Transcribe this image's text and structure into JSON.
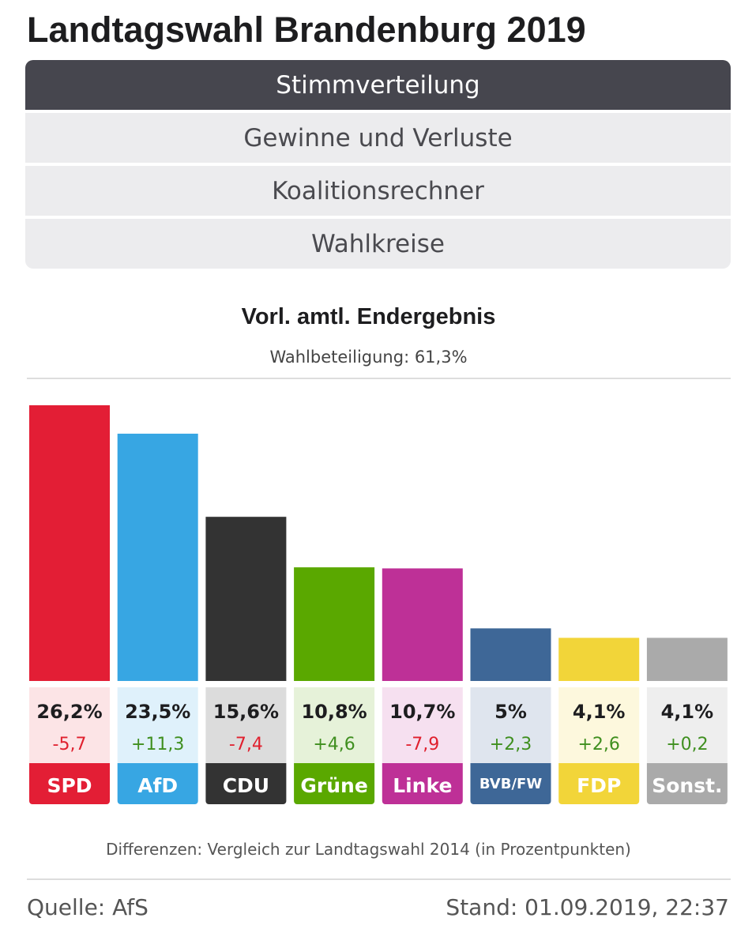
{
  "header": {
    "title": "Landtagswahl Brandenburg 2019"
  },
  "tabs": [
    {
      "label": "Stimmverteilung",
      "active": true
    },
    {
      "label": "Gewinne und Verluste",
      "active": false
    },
    {
      "label": "Koalitionsrechner",
      "active": false
    },
    {
      "label": "Wahlkreise",
      "active": false
    }
  ],
  "result": {
    "heading": "Vorl. amtl. Endergebnis",
    "turnout": "Wahlbeteiligung: 61,3%"
  },
  "chart_data": {
    "type": "bar",
    "categories": [
      "SPD",
      "AfD",
      "CDU",
      "Grüne",
      "Linke",
      "BVB/FW",
      "FDP",
      "Sonst."
    ],
    "values": [
      26.2,
      23.5,
      15.6,
      10.8,
      10.7,
      5,
      4.1,
      4.1
    ],
    "value_labels": [
      "26,2%",
      "23,5%",
      "15,6%",
      "10,8%",
      "10,7%",
      "5%",
      "4,1%",
      "4,1%"
    ],
    "diffs": [
      -5.7,
      11.3,
      -7.4,
      4.6,
      -7.9,
      2.3,
      2.6,
      0.2
    ],
    "diff_labels": [
      "-5,7",
      "+11,3",
      "-7,4",
      "+4,6",
      "-7,9",
      "+2,3",
      "+2,6",
      "+0,2"
    ],
    "colors": [
      "#e31e35",
      "#37a6e3",
      "#333333",
      "#5aa800",
      "#be3097",
      "#3e6797",
      "#f2d539",
      "#aaaaaa"
    ],
    "label_bg": [
      "#fce4e6",
      "#dff1fb",
      "#dcdcdc",
      "#e6f2d9",
      "#f6e0f0",
      "#dfe5ee",
      "#fdf8dd",
      "#eeeeee"
    ],
    "label_text": [
      "#ffffff",
      "#ffffff",
      "#ffffff",
      "#ffffff",
      "#ffffff",
      "#ffffff",
      "#ffffff",
      "#ffffff"
    ],
    "diff_colors": {
      "negative": "#e0202e",
      "positive": "#3f8f1f"
    },
    "title": "",
    "ylim": [
      0,
      26.2
    ]
  },
  "footer": {
    "note": "Differenzen: Vergleich zur Landtagswahl 2014 (in Prozentpunkten)",
    "source": "Quelle: AfS",
    "stand": "Stand: 01.09.2019, 22:37"
  }
}
